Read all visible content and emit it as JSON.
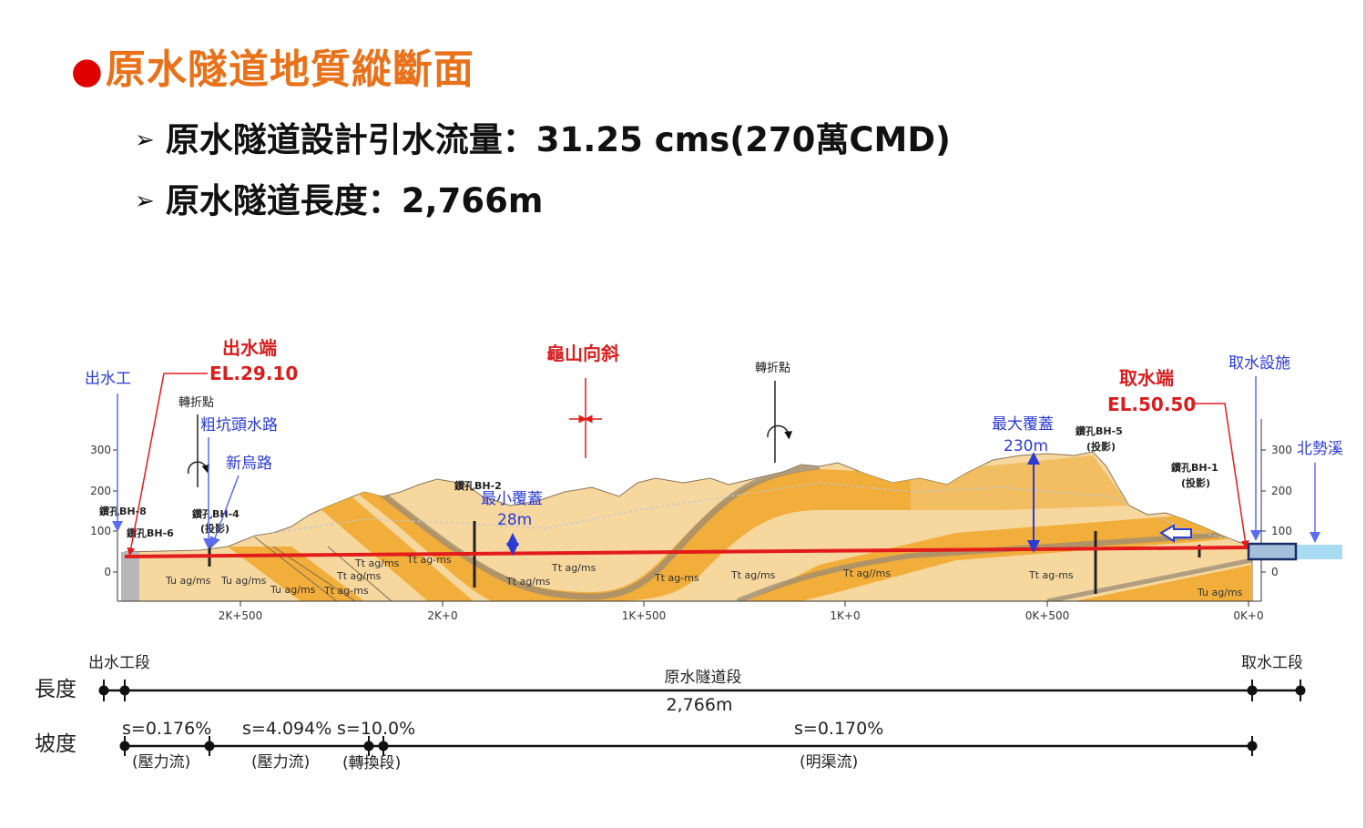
{
  "title": "原水隧道地質縱斷面",
  "bullets": [
    "原水隧道設計引水流量：31.25 cms(270萬CMD)",
    "原水隧道長度：2,766m"
  ],
  "colors": {
    "title": "#e8711a",
    "bullet_dot": "#e00000",
    "tunnel_line": "#e31b1b",
    "label_red": "#d81e1e",
    "label_blue": "#2b3bd6",
    "rock_dark": "#f2ae3a",
    "rock_light": "#f6d79e",
    "water": "#a9dcf2"
  },
  "profile": {
    "outlet_works": "出水工",
    "outlet_end": "出水端",
    "outlet_el": "EL.29.10",
    "turn_point_left": "轉折點",
    "cukeng_road": "粗坑頭水路",
    "xinwu_road": "新烏路",
    "guishan_syncline": "龜山向斜",
    "turn_point_right": "轉折點",
    "max_cover": "最大覆蓋",
    "max_cover_val": "230m",
    "min_cover": "最小覆蓋",
    "min_cover_val": "28m",
    "intake_facility": "取水設施",
    "intake_end": "取水端",
    "intake_el": "EL.50.50",
    "river": "北勢溪",
    "boreholes": {
      "bh8": "鑽孔BH-8",
      "bh6": "鑽孔BH-6",
      "bh4": "鑽孔BH-4",
      "bh4_note": "(投影)",
      "bh2": "鑽孔BH-2",
      "bh5": "鑽孔BH-5",
      "bh5_note": "(投影)",
      "bh1": "鑽孔BH-1",
      "bh1_note": "(投影)"
    },
    "elevation_ticks_left": [
      "300",
      "200",
      "100",
      "0"
    ],
    "elevation_ticks_right": [
      "300",
      "200",
      "100",
      "0"
    ],
    "chainage_ticks": [
      "2K+500",
      "2K+0",
      "1K+500",
      "1K+0",
      "0K+500",
      "0K+0"
    ],
    "geo_labels": [
      "Tu ag/ms",
      "Tu ag/ms",
      "Tu ag/ms",
      "Tt ag/ms",
      "Tt ag/ms",
      "Tt ag-ms",
      "Tt ag-ms",
      "Tt ag/ms",
      "Tt ag/ms",
      "Tt ag-ms",
      "Tt ag/ms",
      "Tt ag//ms",
      "Tt ag-ms",
      "Tu ag/ms"
    ]
  },
  "length_row": {
    "label": "長度",
    "outlet_section": "出水工段",
    "tunnel_section": "原水隧道段",
    "tunnel_length": "2,766m",
    "intake_section": "取水工段"
  },
  "slope_row": {
    "label": "坡度",
    "seg1_slope": "s=0.176%",
    "seg1_note": "(壓力流)",
    "seg2_slope": "s=4.094%",
    "seg2_note": "(壓力流)",
    "seg3_slope": "s=10.0%",
    "seg3_note": "(轉換段)",
    "seg4_slope": "s=0.170%",
    "seg4_note": "(明渠流)"
  }
}
